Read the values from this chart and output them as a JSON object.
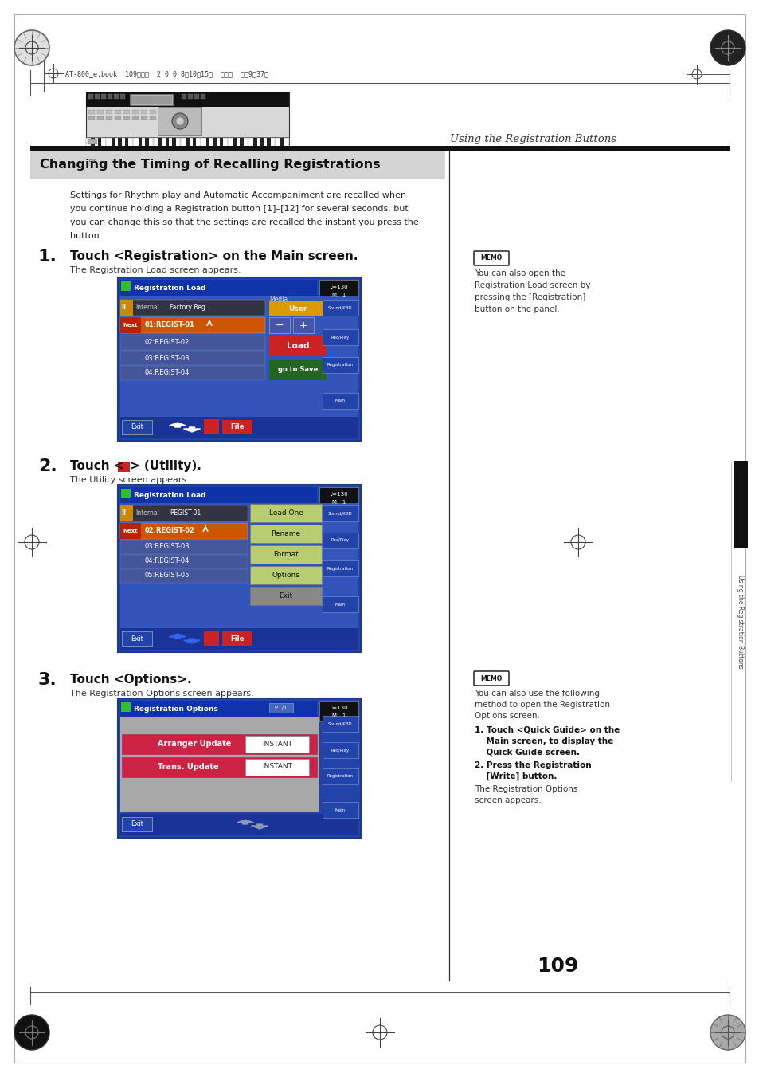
{
  "page_bg": "#ffffff",
  "page_width": 9.54,
  "page_height": 13.51,
  "header_text": "AT-800_e.book  109ページ  2 0 0 8年10月15日  水曜日  午前9時37分",
  "section_header_right": "Using the Registration Buttons",
  "chapter_title": "Changing the Timing of Recalling Registrations",
  "intro_text": "Settings for Rhythm play and Automatic Accompaniment are recalled when\nyou continue holding a Registration button [1]–[12] for several seconds, but\nyou can change this so that the settings are recalled the instant you press the\nbutton.",
  "step1_num": "1.",
  "step1_title": "Touch <Registration> on the Main screen.",
  "step1_desc": "The Registration Load screen appears.",
  "step2_num": "2.",
  "step2_title_a": "Touch <",
  "step2_title_b": "> (Utility).",
  "step2_desc": "The Utility screen appears.",
  "step3_num": "3.",
  "step3_title": "Touch <Options>.",
  "step3_desc": "The Registration Options screen appears.",
  "memo1_title": "MEMO",
  "memo1_text": "You can also open the\nRegistration Load screen by\npressing the [Registration]\nbutton on the panel.",
  "memo2_title": "MEMO",
  "memo2_text1": "You can also use the following\nmethod to open the Registration\nOptions screen.",
  "memo2_item1": "1. Touch <Quick Guide> on the\n    Main screen, to display the\n    Quick Guide screen.",
  "memo2_item2": "2. Press the Registration\n    [Write] button.",
  "memo2_item2_text": "The Registration Options\nscreen appears.",
  "page_number": "109",
  "sidebar_text": "Using the Registration Buttons"
}
